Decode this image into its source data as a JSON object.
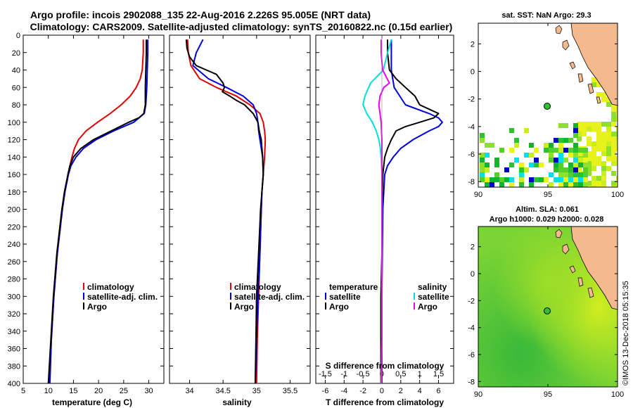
{
  "header": {
    "line1": "Argo profile: incois 2902088_135 22-Aug-2016 2.226S 95.005E (NRT data)",
    "line2": "Climatology: CARS2009. Satellite-adjusted climatology: synTS_20160822.nc (0.15d earlier)"
  },
  "colors": {
    "climatology": "#e00000",
    "satellite": "#0000dd",
    "argo": "#000000",
    "sal_sat": "#00dddd",
    "sal_argo": "#ee00ee"
  },
  "depth_ticks": [
    "0",
    "20",
    "40",
    "60",
    "80",
    "100",
    "120",
    "140",
    "160",
    "180",
    "200",
    "220",
    "240",
    "260",
    "280",
    "300",
    "320",
    "340",
    "360",
    "380",
    "400"
  ],
  "chart_data": [
    {
      "type": "line",
      "id": "temperature",
      "xlabel": "temperature (deg C)",
      "ylabel": "depth",
      "xlim": [
        5,
        33
      ],
      "ylim": [
        0,
        400
      ],
      "xticks": [
        "5",
        "10",
        "15",
        "20",
        "25",
        "30"
      ],
      "legend": [
        "climatology",
        "satellite-adj. clim.",
        "Argo"
      ],
      "series": [
        {
          "name": "climatology",
          "depth": [
            5,
            20,
            40,
            50,
            60,
            70,
            80,
            90,
            100,
            110,
            120,
            130,
            140,
            150,
            160,
            180,
            200,
            250,
            300,
            350,
            400
          ],
          "values": [
            28.9,
            28.9,
            28.7,
            28.3,
            27.5,
            26.3,
            24.5,
            22.3,
            19.8,
            17.5,
            16.0,
            15.2,
            14.7,
            14.3,
            13.9,
            13.3,
            12.8,
            11.8,
            11.1,
            10.6,
            10.2
          ]
        },
        {
          "name": "satellite-adj. clim.",
          "depth": [
            5,
            20,
            40,
            60,
            80,
            90,
            100,
            110,
            120,
            130,
            140,
            150,
            160,
            180,
            200,
            250,
            300,
            350,
            400
          ],
          "values": [
            29.8,
            29.8,
            29.7,
            29.6,
            29.4,
            29.1,
            27.0,
            23.0,
            19.5,
            17.0,
            15.5,
            14.5,
            14.0,
            13.3,
            12.8,
            11.8,
            11.1,
            10.6,
            10.3
          ]
        },
        {
          "name": "Argo",
          "depth": [
            5,
            20,
            40,
            60,
            80,
            90,
            95,
            100,
            110,
            120,
            130,
            140,
            150,
            160,
            180,
            200,
            250,
            300,
            350,
            400
          ],
          "values": [
            29.5,
            29.5,
            29.4,
            29.3,
            29.3,
            29.0,
            28.0,
            26.0,
            22.5,
            19.0,
            16.5,
            15.0,
            14.3,
            13.9,
            13.2,
            12.7,
            11.7,
            11.0,
            10.5,
            10.0
          ]
        }
      ]
    },
    {
      "type": "line",
      "id": "salinity",
      "xlabel": "salinity",
      "ylabel": "depth",
      "xlim": [
        33.7,
        35.8
      ],
      "ylim": [
        0,
        400
      ],
      "xticks": [
        "34",
        "34.5",
        "35",
        "35.5"
      ],
      "legend": [
        "climatology",
        "satellite-adj. clim.",
        "Argo"
      ],
      "series": [
        {
          "name": "climatology",
          "depth": [
            5,
            20,
            35,
            50,
            60,
            70,
            80,
            90,
            100,
            110,
            120,
            140,
            160,
            180,
            200,
            250,
            300,
            350,
            400
          ],
          "values": [
            33.97,
            33.98,
            34.02,
            34.15,
            34.4,
            34.7,
            34.9,
            35.05,
            35.1,
            35.12,
            35.13,
            35.12,
            35.1,
            35.08,
            35.07,
            35.05,
            35.03,
            35.01,
            35.0
          ]
        },
        {
          "name": "satellite-adj. clim.",
          "depth": [
            5,
            20,
            35,
            50,
            60,
            70,
            80,
            90,
            100,
            110,
            120,
            130,
            140,
            160,
            180,
            200,
            250,
            300,
            350,
            400
          ],
          "values": [
            34.2,
            34.1,
            34.05,
            34.28,
            34.55,
            34.8,
            34.95,
            35.0,
            35.02,
            35.03,
            35.05,
            35.07,
            35.09,
            35.1,
            35.08,
            35.07,
            35.05,
            35.02,
            35.0,
            34.98
          ]
        },
        {
          "name": "Argo",
          "depth": [
            5,
            15,
            25,
            35,
            40,
            45,
            55,
            60,
            65,
            70,
            75,
            80,
            90,
            100,
            110,
            120,
            140,
            160,
            180,
            200,
            250,
            300,
            350,
            400
          ],
          "values": [
            33.95,
            33.96,
            34.0,
            34.1,
            34.25,
            34.4,
            34.5,
            34.52,
            34.49,
            34.6,
            34.7,
            34.82,
            34.95,
            35.02,
            35.04,
            35.07,
            35.09,
            35.1,
            35.08,
            35.06,
            35.03,
            35.0,
            34.99,
            34.98
          ]
        }
      ]
    },
    {
      "type": "line",
      "id": "difference",
      "xlabel": "T difference from climatology",
      "x2label": "S difference from climatology",
      "xlim": [
        -7,
        7.6
      ],
      "ylim": [
        0,
        400
      ],
      "xticks": [
        "-6",
        "-4",
        "-2",
        "0",
        "2",
        "4",
        "6"
      ],
      "x2ticks": [
        "-1.5",
        "-1",
        "-0.5",
        "0",
        "0.5",
        "1",
        "1.5"
      ],
      "legend_temperature": {
        "title": "temperature",
        "items": [
          "satellite",
          "Argo"
        ]
      },
      "legend_salinity": {
        "title": "salinity",
        "items": [
          "satellite",
          "Argo"
        ]
      },
      "series": [
        {
          "name": "T satellite",
          "depth": [
            5,
            20,
            40,
            60,
            80,
            90,
            95,
            100,
            105,
            110,
            120,
            130,
            140,
            150,
            160,
            200,
            250,
            300,
            350,
            400
          ],
          "values": [
            1.0,
            1.0,
            1.0,
            1.3,
            2.5,
            5.0,
            6.0,
            6.4,
            6.0,
            5.0,
            3.3,
            2.0,
            1.2,
            0.6,
            0.3,
            0.1,
            0.05,
            0.0,
            0.0,
            0.0
          ]
        },
        {
          "name": "T Argo",
          "depth": [
            5,
            20,
            40,
            50,
            60,
            70,
            80,
            85,
            90,
            95,
            100,
            105,
            110,
            120,
            130,
            140,
            160,
            200,
            250,
            300,
            350,
            400
          ],
          "values": [
            0.6,
            0.6,
            0.8,
            1.5,
            2.5,
            3.5,
            4.0,
            5.0,
            6.0,
            5.5,
            4.0,
            2.5,
            1.5,
            1.0,
            0.6,
            0.3,
            0.1,
            0.0,
            0.0,
            -0.1,
            -0.1,
            -0.1
          ]
        },
        {
          "name": "S satellite",
          "depth": [
            5,
            20,
            40,
            55,
            70,
            80,
            90,
            100,
            110,
            120,
            130,
            140,
            160,
            200,
            250,
            300,
            350,
            400
          ],
          "values": [
            0.25,
            0.15,
            0.04,
            -0.3,
            -0.45,
            -0.5,
            -0.4,
            -0.25,
            -0.15,
            -0.08,
            -0.04,
            -0.02,
            0.0,
            0.0,
            0.0,
            0.0,
            0.0,
            -0.02
          ]
        },
        {
          "name": "S Argo",
          "depth": [
            5,
            20,
            40,
            55,
            60,
            70,
            80,
            90,
            100,
            110,
            120,
            140,
            160,
            200,
            250,
            300,
            350,
            400
          ],
          "values": [
            -0.02,
            -0.02,
            0.02,
            0.2,
            0.05,
            -0.05,
            -0.08,
            -0.05,
            -0.02,
            -0.01,
            0.0,
            0.0,
            0.0,
            0.0,
            0.0,
            0.0,
            0.0,
            -0.01
          ]
        }
      ]
    }
  ],
  "maps": {
    "sst": {
      "title": "sat. SST: NaN Argo: 29.3",
      "xticks": [
        "90",
        "95",
        "100"
      ],
      "yticks": [
        "2",
        "0",
        "-2",
        "-4",
        "-6",
        "-8"
      ]
    },
    "sla": {
      "title1": "Altim. SLA: 0.061",
      "title2": "Argo h1000: 0.029 h2000: 0.028",
      "xticks": [
        "90",
        "95",
        "100"
      ],
      "yticks": [
        "2",
        "0",
        "-2",
        "-4",
        "-6",
        "-8"
      ]
    },
    "argo_position": {
      "lon": 95.005,
      "lat": -2.226
    }
  },
  "stamp": "©IMOS 13-Dec-2018 05:15:35"
}
